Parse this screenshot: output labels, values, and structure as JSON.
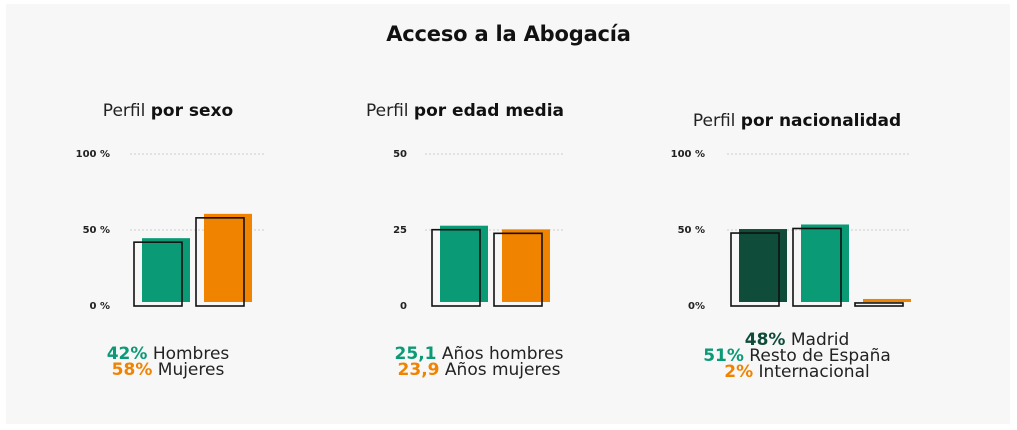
{
  "title": "Acceso a la Abogacía",
  "colors": {
    "green": "#0a9a76",
    "orange": "#f08300",
    "dark_green": "#0f4c3a",
    "outline": "#111111",
    "grid": "#cccccc"
  },
  "panels": [
    {
      "subtitle_prefix": "Perfil ",
      "subtitle_bold": "por sexo",
      "ticks": [
        "100 %",
        "50 %",
        "0 %"
      ],
      "legend": [
        {
          "value": "42%",
          "label": " Hombres"
        },
        {
          "value": "58%",
          "label": " Mujeres"
        }
      ]
    },
    {
      "subtitle_prefix": "Perfil ",
      "subtitle_bold": "por edad media",
      "ticks": [
        "50",
        "25",
        "0"
      ],
      "legend": [
        {
          "value": "25,1",
          "label": " Años hombres"
        },
        {
          "value": "23,9",
          "label": " Años mujeres"
        }
      ]
    },
    {
      "subtitle_prefix": "Perfil ",
      "subtitle_bold": "por nacionalidad",
      "ticks": [
        "100 %",
        "50 %",
        "0%"
      ],
      "legend": [
        {
          "value": "48%",
          "label": " Madrid"
        },
        {
          "value": "51%",
          "label": " Resto de España"
        },
        {
          "value": "2%",
          "label": " Internacional"
        }
      ]
    }
  ],
  "chart_data": [
    {
      "type": "bar",
      "title": "Perfil por sexo",
      "categories": [
        "Hombres",
        "Mujeres"
      ],
      "values": [
        42,
        58
      ],
      "ylim": [
        0,
        100
      ],
      "colors": [
        "green",
        "orange"
      ],
      "grid": true
    },
    {
      "type": "bar",
      "title": "Perfil por edad media",
      "categories": [
        "Años hombres",
        "Años mujeres"
      ],
      "values": [
        25.1,
        23.9
      ],
      "ylim": [
        0,
        50
      ],
      "colors": [
        "green",
        "orange"
      ],
      "grid": true
    },
    {
      "type": "bar",
      "title": "Perfil por nacionalidad",
      "categories": [
        "Madrid",
        "Resto de España",
        "Internacional"
      ],
      "values": [
        48,
        51,
        2
      ],
      "ylim": [
        0,
        100
      ],
      "colors": [
        "dark_green",
        "green",
        "orange"
      ],
      "grid": true
    }
  ]
}
